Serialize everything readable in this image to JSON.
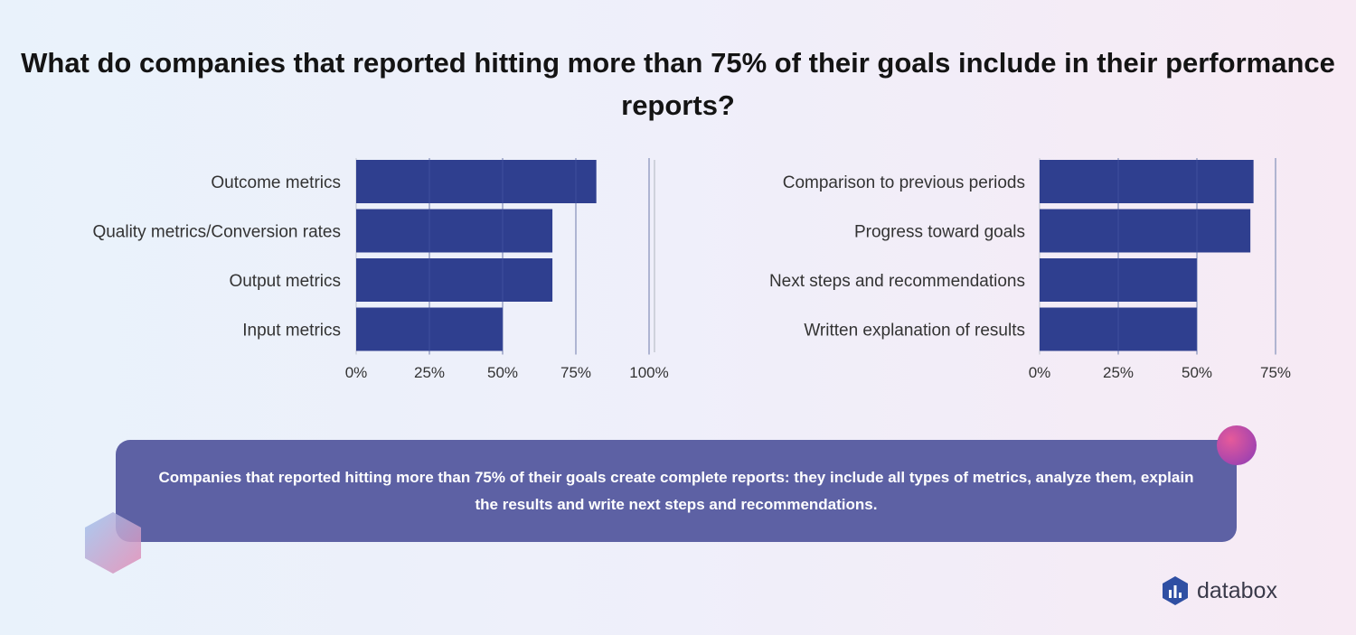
{
  "title": "What do companies that reported hitting more than 75% of their goals include in their performance reports?",
  "colors": {
    "bar": "#2f3f8f",
    "grid": "#cfd2dc",
    "callout": "#5d61a4"
  },
  "chart_data": [
    {
      "type": "bar",
      "orientation": "horizontal",
      "title": "",
      "categories": [
        "Outcome metrics",
        "Quality metrics/Conversion rates",
        "Output metrics",
        "Input metrics"
      ],
      "values": [
        82,
        67,
        67,
        50
      ],
      "xlim": [
        0,
        100
      ],
      "xticks": [
        "0%",
        "25%",
        "50%",
        "75%",
        "100%"
      ],
      "unit": "%",
      "grid": true,
      "legend": "none"
    },
    {
      "type": "bar",
      "orientation": "horizontal",
      "title": "",
      "categories": [
        "Comparison to previous periods",
        "Progress toward goals",
        "Next steps and recommendations",
        "Written explanation of results"
      ],
      "values": [
        68,
        67,
        50,
        50
      ],
      "xlim": [
        0,
        75
      ],
      "xticks": [
        "0%",
        "25%",
        "50%",
        "75%"
      ],
      "unit": "%",
      "grid": true,
      "legend": "none"
    }
  ],
  "callout": {
    "text": "Companies that reported hitting more than 75% of their goals create complete reports: they include all types of metrics, analyze them, explain the results and write next steps and recommendations."
  },
  "brand": {
    "name": "databox",
    "icon": "databox-logo-icon"
  }
}
